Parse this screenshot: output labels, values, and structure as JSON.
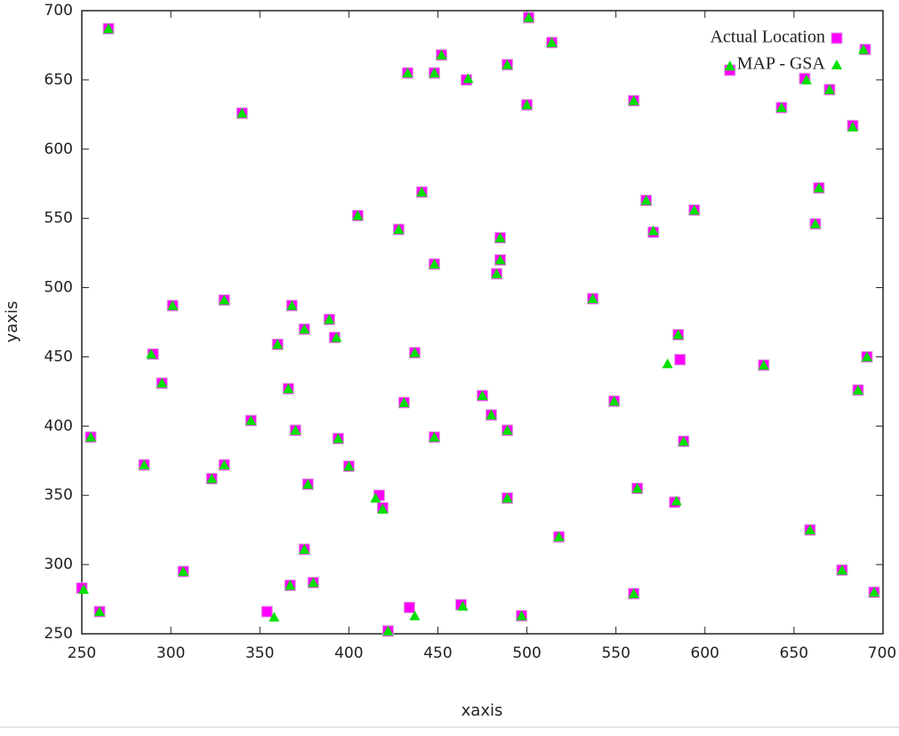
{
  "chart_data": {
    "type": "scatter",
    "xlabel": "xaxis",
    "ylabel": "yaxis",
    "xlim": [
      250,
      700
    ],
    "ylim": [
      250,
      700
    ],
    "xticks": [
      250,
      300,
      350,
      400,
      450,
      500,
      550,
      600,
      650,
      700
    ],
    "yticks": [
      250,
      300,
      350,
      400,
      450,
      500,
      550,
      600,
      650,
      700
    ],
    "legend": "top-right",
    "series": [
      {
        "name": "Actual Location",
        "color": "#ff00ff",
        "marker": "square",
        "x": [
          265,
          433,
          448,
          452,
          489,
          500,
          501,
          514,
          340,
          560,
          643,
          656,
          670,
          683,
          614,
          690,
          466,
          441,
          405,
          428,
          485,
          485,
          483,
          448,
          594,
          571,
          567,
          664,
          662,
          301,
          330,
          368,
          537,
          389,
          375,
          392,
          360,
          437,
          290,
          295,
          585,
          586,
          633,
          691,
          475,
          366,
          431,
          549,
          686,
          480,
          345,
          255,
          370,
          394,
          448,
          489,
          588,
          285,
          330,
          400,
          323,
          377,
          417,
          419,
          489,
          562,
          583,
          518,
          659,
          375,
          307,
          677,
          250,
          260,
          380,
          367,
          354,
          434,
          463,
          422,
          497,
          560,
          695
        ],
        "values": [
          687,
          655,
          655,
          668,
          661,
          632,
          695,
          677,
          626,
          635,
          630,
          651,
          643,
          617,
          657,
          672,
          650,
          569,
          552,
          542,
          536,
          520,
          510,
          517,
          556,
          540,
          563,
          572,
          546,
          487,
          491,
          487,
          492,
          477,
          470,
          464,
          459,
          453,
          452,
          431,
          466,
          448,
          444,
          450,
          422,
          427,
          417,
          418,
          426,
          408,
          404,
          392,
          397,
          391,
          392,
          397,
          389,
          372,
          372,
          371,
          362,
          358,
          350,
          341,
          348,
          355,
          345,
          320,
          325,
          311,
          295,
          296,
          283,
          266,
          287,
          285,
          266,
          269,
          271,
          252,
          263,
          279,
          280
        ]
      },
      {
        "name": "MAP - GSA",
        "color": "#00e000",
        "marker": "triangle",
        "x": [
          265,
          433,
          448,
          452,
          489,
          500,
          501,
          514,
          340,
          560,
          643,
          657,
          670,
          683,
          614,
          689,
          467,
          441,
          405,
          428,
          485,
          485,
          483,
          448,
          594,
          571,
          567,
          664,
          662,
          301,
          330,
          368,
          537,
          389,
          375,
          393,
          360,
          437,
          289,
          295,
          585,
          579,
          633,
          691,
          475,
          366,
          431,
          549,
          686,
          480,
          345,
          255,
          370,
          394,
          448,
          489,
          588,
          285,
          330,
          400,
          323,
          377,
          415,
          419,
          489,
          562,
          584,
          518,
          659,
          375,
          307,
          677,
          251,
          260,
          380,
          367,
          358,
          437,
          464,
          422,
          497,
          560,
          695
        ],
        "values": [
          687,
          655,
          655,
          668,
          661,
          632,
          695,
          677,
          626,
          635,
          630,
          650,
          643,
          616,
          660,
          672,
          651,
          569,
          552,
          542,
          536,
          520,
          510,
          517,
          556,
          541,
          563,
          572,
          546,
          487,
          491,
          487,
          492,
          477,
          470,
          464,
          459,
          453,
          452,
          431,
          466,
          445,
          444,
          450,
          422,
          427,
          417,
          418,
          426,
          408,
          404,
          392,
          397,
          391,
          392,
          397,
          389,
          372,
          372,
          371,
          362,
          358,
          348,
          340,
          348,
          355,
          346,
          320,
          325,
          311,
          295,
          296,
          282,
          266,
          287,
          285,
          262,
          263,
          270,
          252,
          263,
          279,
          280
        ]
      }
    ]
  }
}
